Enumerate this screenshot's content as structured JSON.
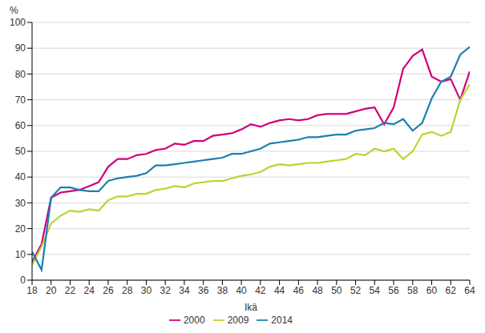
{
  "chart_data": {
    "type": "line",
    "x_label": "Ikä",
    "y_label": "%",
    "x": [
      18,
      19,
      20,
      21,
      22,
      23,
      24,
      25,
      26,
      27,
      28,
      29,
      30,
      31,
      32,
      33,
      34,
      35,
      36,
      37,
      38,
      39,
      40,
      41,
      42,
      43,
      44,
      45,
      46,
      47,
      48,
      49,
      50,
      51,
      52,
      53,
      54,
      55,
      56,
      57,
      58,
      59,
      60,
      61,
      62,
      63,
      64
    ],
    "series": [
      {
        "name": "2000",
        "color": "#d1007d",
        "values": [
          7,
          14,
          32,
          34,
          34.5,
          35,
          36.5,
          38,
          44,
          47,
          47,
          48.5,
          49,
          50.5,
          51,
          53,
          52.5,
          54,
          54,
          56,
          56.5,
          57,
          58.5,
          60.5,
          59.5,
          61,
          62,
          62.5,
          62,
          62.5,
          64,
          64.5,
          64.5,
          64.5,
          65.5,
          66.5,
          67,
          60.5,
          67,
          82,
          87,
          89.5,
          79,
          77,
          78,
          70,
          81
        ]
      },
      {
        "name": "2009",
        "color": "#b9d531",
        "values": [
          6,
          13,
          22,
          25,
          27,
          26.5,
          27.5,
          27,
          31,
          32.5,
          32.5,
          33.5,
          33.5,
          35,
          35.5,
          36.5,
          36,
          37.5,
          38,
          38.5,
          38.5,
          39.5,
          40.5,
          41,
          42,
          44,
          45,
          44.5,
          45,
          45.5,
          45.5,
          46,
          46.5,
          47,
          49,
          48.5,
          51,
          50,
          51,
          47,
          50,
          56.5,
          57.5,
          56,
          57.5,
          70,
          76
        ]
      },
      {
        "name": "2014",
        "color": "#1c7fb0",
        "values": [
          11,
          4,
          32,
          36,
          36,
          35,
          34.5,
          34.5,
          38.5,
          39.5,
          40,
          40.5,
          41.5,
          44.5,
          44.5,
          45,
          45.5,
          46,
          46.5,
          47,
          47.5,
          49,
          49,
          50,
          51,
          53,
          53.5,
          54,
          54.5,
          55.5,
          55.5,
          56,
          56.5,
          56.5,
          58,
          58.5,
          59,
          61,
          60.5,
          62.5,
          58,
          61,
          70.5,
          77,
          79,
          87.5,
          90.5
        ]
      }
    ],
    "xlim": [
      18,
      64
    ],
    "xticks": [
      18,
      20,
      22,
      24,
      26,
      28,
      30,
      32,
      34,
      36,
      38,
      40,
      42,
      44,
      46,
      48,
      50,
      52,
      54,
      56,
      58,
      60,
      62,
      64
    ],
    "ylim": [
      0,
      100
    ],
    "yticks": [
      0,
      10,
      20,
      30,
      40,
      50,
      60,
      70,
      80,
      90,
      100
    ],
    "grid": true,
    "legend": "bottom"
  }
}
